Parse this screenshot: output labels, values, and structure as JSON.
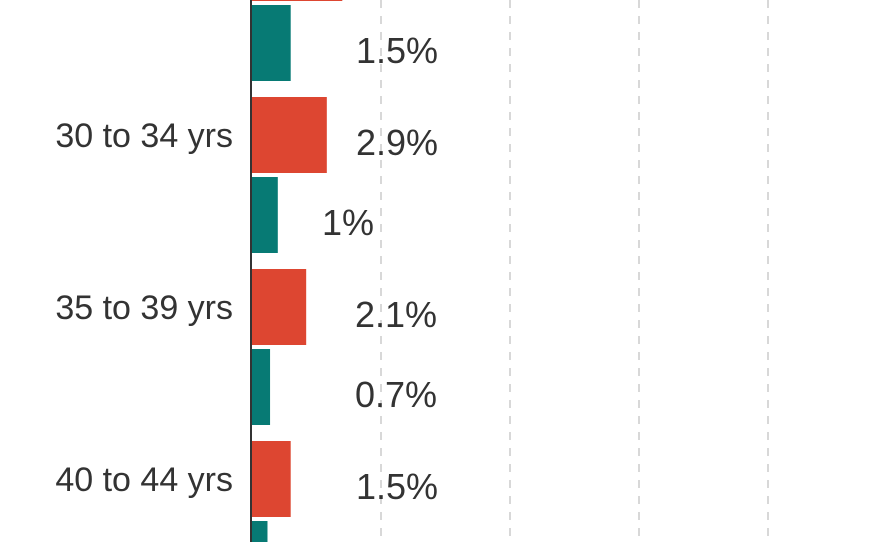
{
  "chart_data": {
    "type": "bar",
    "orientation": "horizontal",
    "categories": [
      "",
      "30 to 34 yrs",
      "35 to 39 yrs",
      "40 to 44 yrs"
    ],
    "series": [
      {
        "color": "#dd4631",
        "values": [
          3.5,
          2.9,
          2.1,
          1.5
        ],
        "labels": [
          "",
          "2.9%",
          "2.1%",
          "1.5%"
        ]
      },
      {
        "color": "#077a74",
        "values": [
          1.5,
          1,
          0.7,
          0.6
        ],
        "labels": [
          "1.5%",
          "1%",
          "0.7%",
          ""
        ]
      }
    ],
    "xlim": [
      0,
      24
    ],
    "grid": true,
    "grid_style": "dashed",
    "grid_step": 5
  }
}
